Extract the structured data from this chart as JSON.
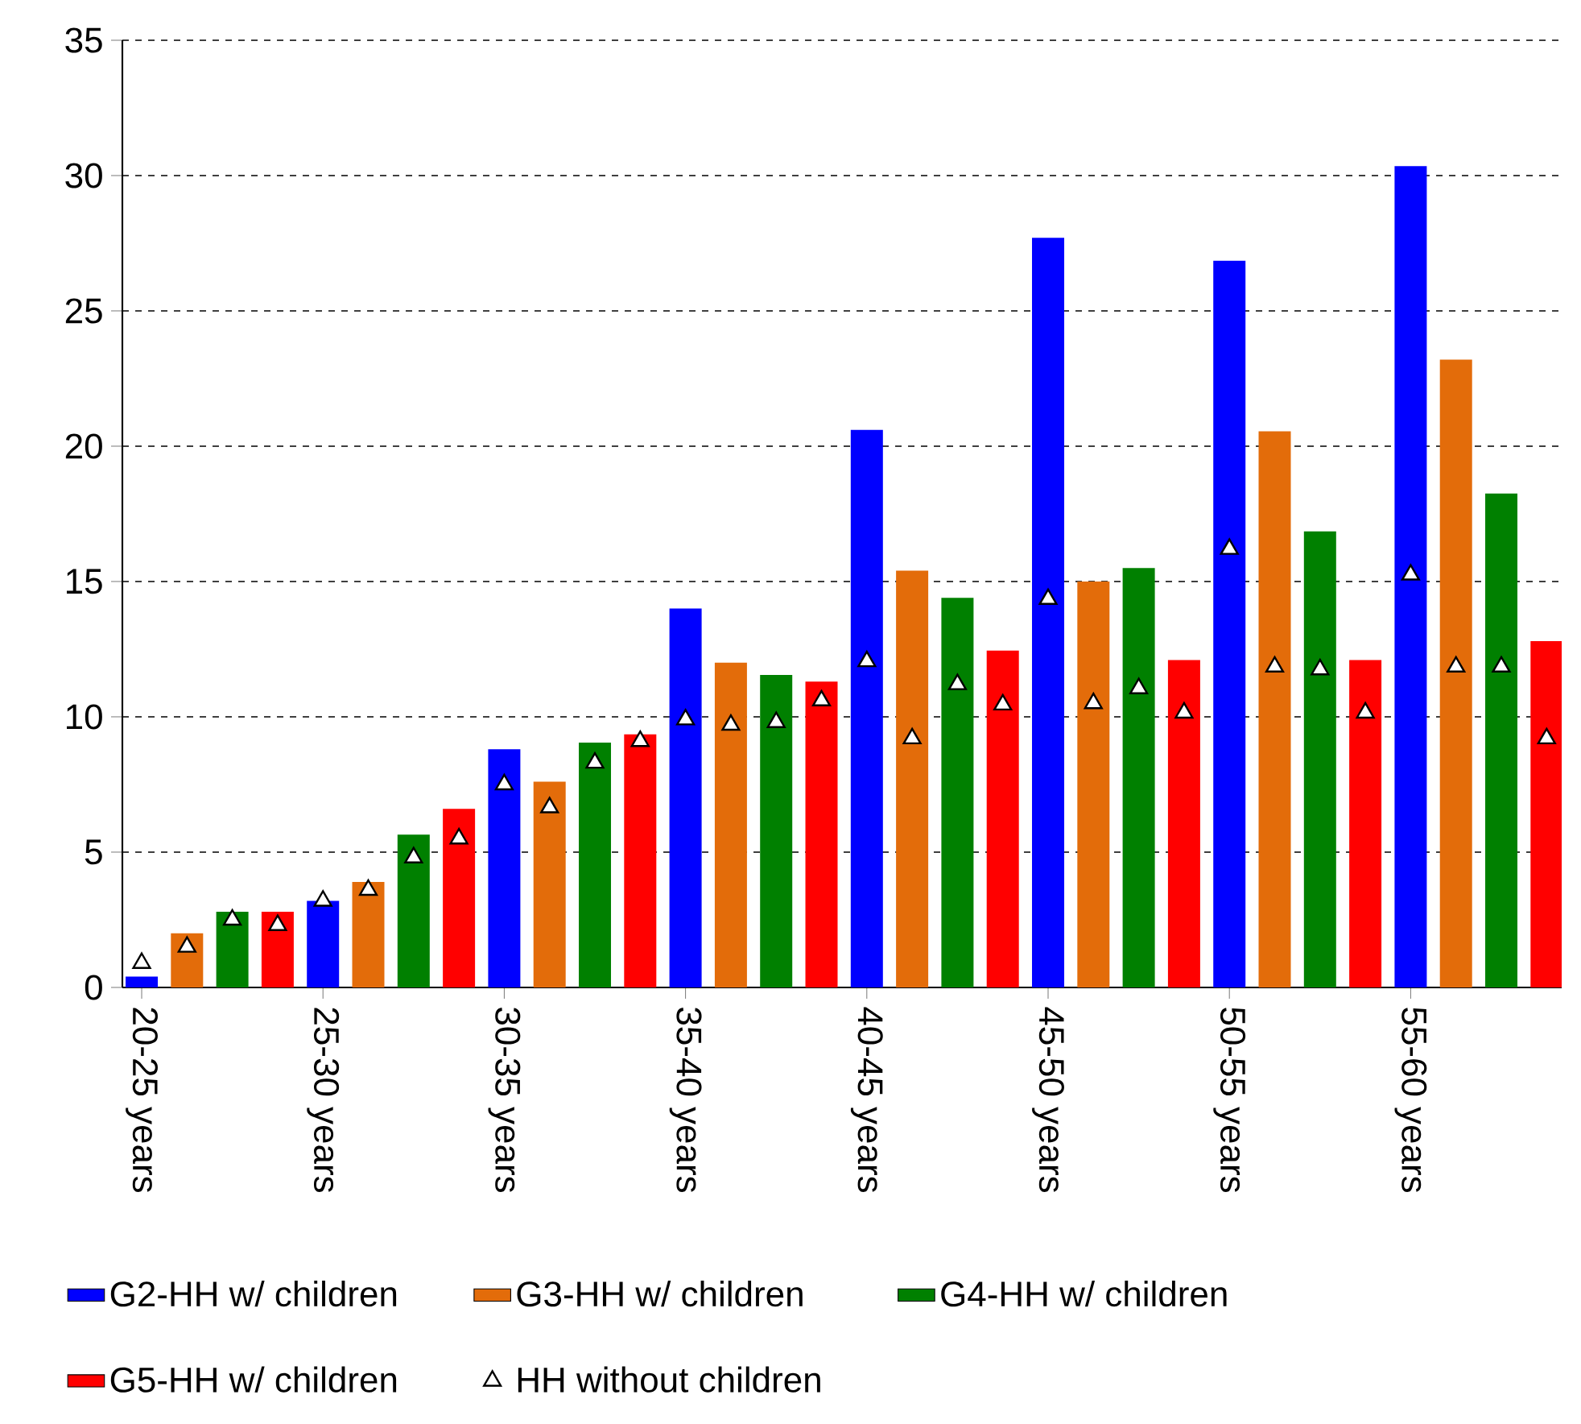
{
  "chart_data": {
    "type": "bar",
    "categories": [
      "20-25 years",
      null,
      null,
      null,
      "25-30 years",
      null,
      null,
      null,
      "30-35 years",
      null,
      null,
      null,
      "35-40 years",
      null,
      null,
      null,
      "40-45 years",
      null,
      null,
      null,
      "45-50 years",
      null,
      null,
      null,
      "50-55 years",
      null,
      null,
      null,
      "55-60 years",
      null,
      null,
      null
    ],
    "series": [
      {
        "name": "G2-HH w/ children",
        "color": "#0000ff",
        "values": [
          0.4,
          null,
          null,
          null,
          3.2,
          null,
          null,
          null,
          8.8,
          null,
          null,
          null,
          14.0,
          null,
          null,
          null,
          20.6,
          null,
          null,
          null,
          27.7,
          null,
          null,
          null,
          26.85,
          null,
          null,
          null,
          30.35,
          null,
          null,
          null
        ]
      },
      {
        "name": "G3-HH w/ children",
        "color": "#e36c0a",
        "values": [
          null,
          2.0,
          null,
          null,
          null,
          3.9,
          null,
          null,
          null,
          7.6,
          null,
          null,
          null,
          12.0,
          null,
          null,
          null,
          15.4,
          null,
          null,
          null,
          15.0,
          null,
          null,
          null,
          20.55,
          null,
          null,
          null,
          23.2,
          null,
          null
        ]
      },
      {
        "name": "G4-HH w/ children",
        "color": "#008000",
        "values": [
          null,
          null,
          2.8,
          null,
          null,
          null,
          5.65,
          null,
          null,
          null,
          9.05,
          null,
          null,
          null,
          11.55,
          null,
          null,
          null,
          14.4,
          null,
          null,
          null,
          15.5,
          null,
          null,
          null,
          16.85,
          null,
          null,
          null,
          18.25,
          null
        ]
      },
      {
        "name": "G5-HH w/ children",
        "color": "#ff0000",
        "values": [
          null,
          null,
          null,
          2.8,
          null,
          null,
          null,
          6.6,
          null,
          null,
          null,
          9.35,
          null,
          null,
          null,
          11.3,
          null,
          null,
          null,
          12.45,
          null,
          null,
          null,
          12.1,
          null,
          null,
          null,
          12.1,
          null,
          null,
          null,
          12.8
        ]
      },
      {
        "name": "HH without children",
        "type": "scatter",
        "marker": "triangle",
        "color": "#ffffff",
        "values": [
          0.9,
          1.5,
          2.5,
          2.3,
          3.2,
          3.6,
          4.8,
          5.5,
          7.5,
          6.65,
          8.3,
          9.1,
          9.9,
          9.7,
          9.8,
          10.6,
          12.05,
          9.2,
          11.2,
          10.45,
          14.35,
          10.5,
          11.05,
          10.15,
          16.2,
          11.85,
          11.75,
          10.15,
          15.25,
          11.85,
          11.85,
          9.2
        ]
      }
    ],
    "ylim": [
      0,
      35
    ],
    "yticks": [
      0,
      5,
      10,
      15,
      20,
      25,
      30,
      35
    ],
    "grid": "y",
    "legend": "bottom"
  }
}
